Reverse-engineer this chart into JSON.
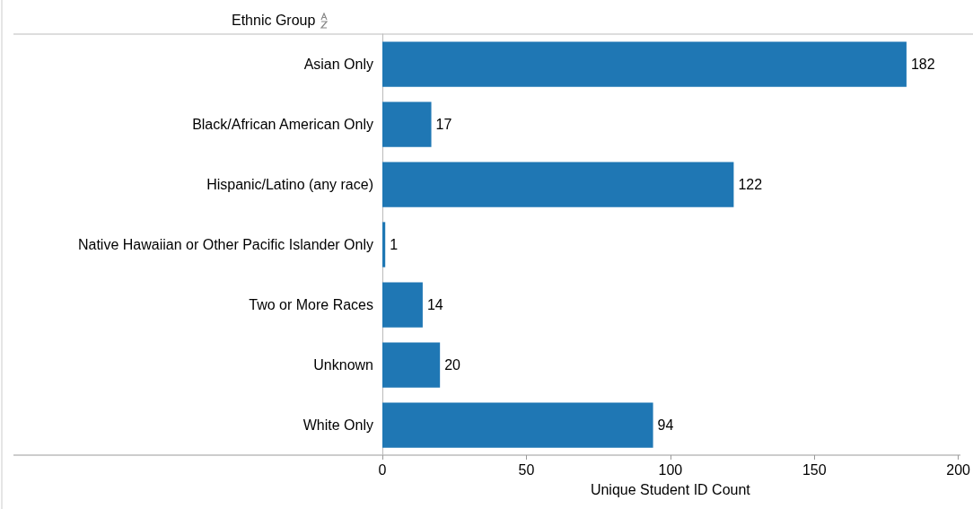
{
  "chart_data": {
    "type": "bar",
    "orientation": "horizontal",
    "ylabel": "Ethnic Group",
    "xlabel": "Unique Student ID Count",
    "categories": [
      "Asian Only",
      "Black/African American Only",
      "Hispanic/Latino (any race)",
      "Native Hawaiian or Other Pacific Islander Only",
      "Two or More Races",
      "Unknown",
      "White Only"
    ],
    "values": [
      182,
      17,
      122,
      1,
      14,
      20,
      94
    ],
    "color": "#1f77b4",
    "xlim": [
      0,
      200
    ],
    "xticks": [
      0,
      50,
      100,
      150,
      200
    ],
    "grid": false,
    "data_labels": true
  }
}
